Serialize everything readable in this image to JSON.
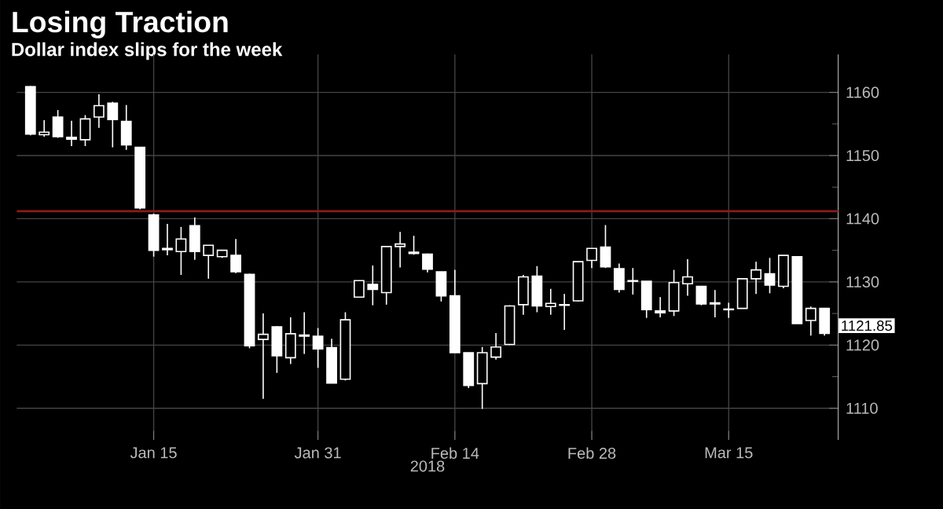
{
  "chart_data": {
    "type": "candlestick",
    "title": "Losing Traction",
    "subtitle": "Dollar index slips for the week",
    "xlabel": "2018",
    "categories": [
      null,
      null,
      null,
      null,
      null,
      null,
      null,
      null,
      null,
      "Jan 15",
      null,
      null,
      null,
      null,
      null,
      null,
      null,
      null,
      null,
      null,
      null,
      "Jan 31",
      null,
      null,
      null,
      null,
      null,
      null,
      null,
      null,
      null,
      "Feb 14",
      null,
      null,
      null,
      null,
      null,
      null,
      null,
      null,
      null,
      "Feb 28",
      null,
      null,
      null,
      null,
      null,
      null,
      null,
      null,
      null,
      "Mar 15",
      null,
      null,
      null,
      null,
      null,
      null,
      null
    ],
    "ohlc": [
      [
        1160.9,
        1161,
        1153.2,
        1153.4
      ],
      [
        1153.3,
        1155.6,
        1153,
        1153.7
      ],
      [
        1156.1,
        1157.2,
        1152.8,
        1153
      ],
      [
        1152.9,
        1155.5,
        1151.5,
        1152.6
      ],
      [
        1152.5,
        1156.4,
        1151.5,
        1155.8
      ],
      [
        1156.1,
        1159.7,
        1154.4,
        1157.9
      ],
      [
        1158.3,
        1158.5,
        1151.3,
        1155.7
      ],
      [
        1155.4,
        1158,
        1150.9,
        1151.7
      ],
      [
        1151.3,
        1151.3,
        1141.5,
        1141.7
      ],
      [
        1140.6,
        1140.8,
        1134,
        1135
      ],
      [
        1135.3,
        1139.2,
        1134.2,
        1135.1
      ],
      [
        1134.8,
        1138.7,
        1131.1,
        1136.8
      ],
      [
        1138.9,
        1140.2,
        1133.5,
        1134.8
      ],
      [
        1134.2,
        1135.8,
        1130.5,
        1135.8
      ],
      [
        1134,
        1135,
        1133.8,
        1135
      ],
      [
        1134.2,
        1136.8,
        1131.4,
        1131.6
      ],
      [
        1131.2,
        1131.3,
        1119.5,
        1119.9
      ],
      [
        1120.9,
        1125,
        1111.5,
        1121.7
      ],
      [
        1122.9,
        1123,
        1115.6,
        1118.3
      ],
      [
        1118,
        1124.4,
        1117,
        1121.8
      ],
      [
        1121.4,
        1125.2,
        1118.6,
        1121.6
      ],
      [
        1121.4,
        1122.7,
        1116.4,
        1119.4
      ],
      [
        1119.6,
        1121,
        1114,
        1114
      ],
      [
        1114.6,
        1125.2,
        1114.4,
        1124
      ],
      [
        1127.6,
        1130.2,
        1127.5,
        1130.2
      ],
      [
        1129.6,
        1132.6,
        1126.3,
        1128.8
      ],
      [
        1128.3,
        1135.6,
        1126.4,
        1135.6
      ],
      [
        1135.6,
        1137.9,
        1132.3,
        1136
      ],
      [
        1134.7,
        1137.3,
        1134.3,
        1134.5
      ],
      [
        1134.4,
        1134.5,
        1131.5,
        1132
      ],
      [
        1131.6,
        1131.6,
        1126.9,
        1127.8
      ],
      [
        1127.8,
        1131.9,
        1118.8,
        1118.8
      ],
      [
        1118.8,
        1118.8,
        1113.2,
        1113.6
      ],
      [
        1113.9,
        1119.7,
        1109.9,
        1118.8
      ],
      [
        1118.1,
        1121.9,
        1117.7,
        1119.7
      ],
      [
        1120.1,
        1126.3,
        1120,
        1126.2
      ],
      [
        1126.4,
        1131.1,
        1124.8,
        1130.8
      ],
      [
        1130.9,
        1132.5,
        1125.2,
        1126.2
      ],
      [
        1126.1,
        1128.9,
        1124.8,
        1126.6
      ],
      [
        1126.4,
        1128.1,
        1122.4,
        1126.3
      ],
      [
        1127,
        1133.2,
        1126.9,
        1133.2
      ],
      [
        1133.4,
        1135.3,
        1132.2,
        1135.3
      ],
      [
        1135.5,
        1139,
        1132.2,
        1132.4
      ],
      [
        1132.1,
        1132.9,
        1128.3,
        1128.8
      ],
      [
        1130.2,
        1132.2,
        1128,
        1130.1
      ],
      [
        1130.1,
        1130.1,
        1124.3,
        1125.6
      ],
      [
        1125.4,
        1127.6,
        1124.4,
        1125.1
      ],
      [
        1125.4,
        1131.9,
        1124.6,
        1129.9
      ],
      [
        1129.7,
        1133.6,
        1127.8,
        1130.8
      ],
      [
        1129.3,
        1129.3,
        1126.3,
        1126.5
      ],
      [
        1126.7,
        1128.7,
        1124.4,
        1126.5
      ],
      [
        1125.6,
        1126.7,
        1124.3,
        1125.7
      ],
      [
        1125.8,
        1130.5,
        1125.8,
        1130.5
      ],
      [
        1130.5,
        1133.2,
        1128.1,
        1131.9
      ],
      [
        1131.3,
        1133.8,
        1128.2,
        1129.5
      ],
      [
        1129.3,
        1134.2,
        1129,
        1134.2
      ],
      [
        1134,
        1134,
        1123.4,
        1123.4
      ],
      [
        1123.9,
        1126.1,
        1121.5,
        1125.8
      ],
      [
        1125.8,
        1125.8,
        1121.5,
        1121.85
      ]
    ],
    "color": "#ffffff",
    "ylim": [
      1105,
      1166
    ],
    "yticks": [
      1110,
      1120,
      1130,
      1140,
      1150,
      1160
    ],
    "grid": true,
    "ref_lines": [
      {
        "axis": "y",
        "value": 1141.2,
        "color": "#8b1a1a"
      }
    ],
    "annotations": [
      "1121.85"
    ]
  }
}
